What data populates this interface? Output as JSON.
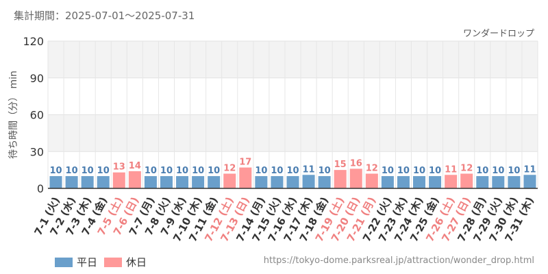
{
  "header": {
    "period": "集計期間：2025-07-01～2025-07-31",
    "attraction": "ワンダードロップ"
  },
  "legend": {
    "weekday_label": "平日",
    "holiday_label": "休日"
  },
  "footer": {
    "url": "https://tokyo-dome.parksreal.jp/attraction/wonder_drop.html"
  },
  "colors": {
    "weekday": "#6a9fcb",
    "holiday": "#ff9999",
    "weekday_text": "#4a7db0",
    "holiday_text": "#f08080",
    "tick_text": "#333333"
  },
  "chart_data": {
    "type": "bar",
    "ylabel": "待ち時間（分） min",
    "ylim": [
      0,
      120
    ],
    "yticks": [
      0,
      30,
      60,
      90,
      120
    ],
    "grid": true,
    "categories": [
      "7-1 (火)",
      "7-2 (水)",
      "7-3 (木)",
      "7-4 (金)",
      "7-5 (土)",
      "7-6 (日)",
      "7-7 (月)",
      "7-8 (火)",
      "7-9 (水)",
      "7-10 (木)",
      "7-11 (金)",
      "7-12 (土)",
      "7-13 (日)",
      "7-14 (月)",
      "7-15 (火)",
      "7-16 (水)",
      "7-17 (木)",
      "7-18 (金)",
      "7-19 (土)",
      "7-20 (日)",
      "7-21 (月)",
      "7-22 (火)",
      "7-23 (水)",
      "7-24 (木)",
      "7-25 (金)",
      "7-26 (土)",
      "7-27 (日)",
      "7-28 (月)",
      "7-29 (火)",
      "7-30 (水)",
      "7-31 (木)"
    ],
    "values": [
      10,
      10,
      10,
      10,
      13,
      14,
      10,
      10,
      10,
      10,
      10,
      12,
      17,
      10,
      10,
      10,
      11,
      10,
      15,
      16,
      12,
      10,
      10,
      10,
      10,
      11,
      12,
      10,
      10,
      10,
      11
    ],
    "holiday": [
      false,
      false,
      false,
      false,
      true,
      true,
      false,
      false,
      false,
      false,
      false,
      true,
      true,
      false,
      false,
      false,
      false,
      false,
      true,
      true,
      true,
      false,
      false,
      false,
      false,
      true,
      true,
      false,
      false,
      false,
      false
    ],
    "series": [
      {
        "name": "平日"
      },
      {
        "name": "休日"
      }
    ],
    "legend_position": "bottom-left"
  }
}
